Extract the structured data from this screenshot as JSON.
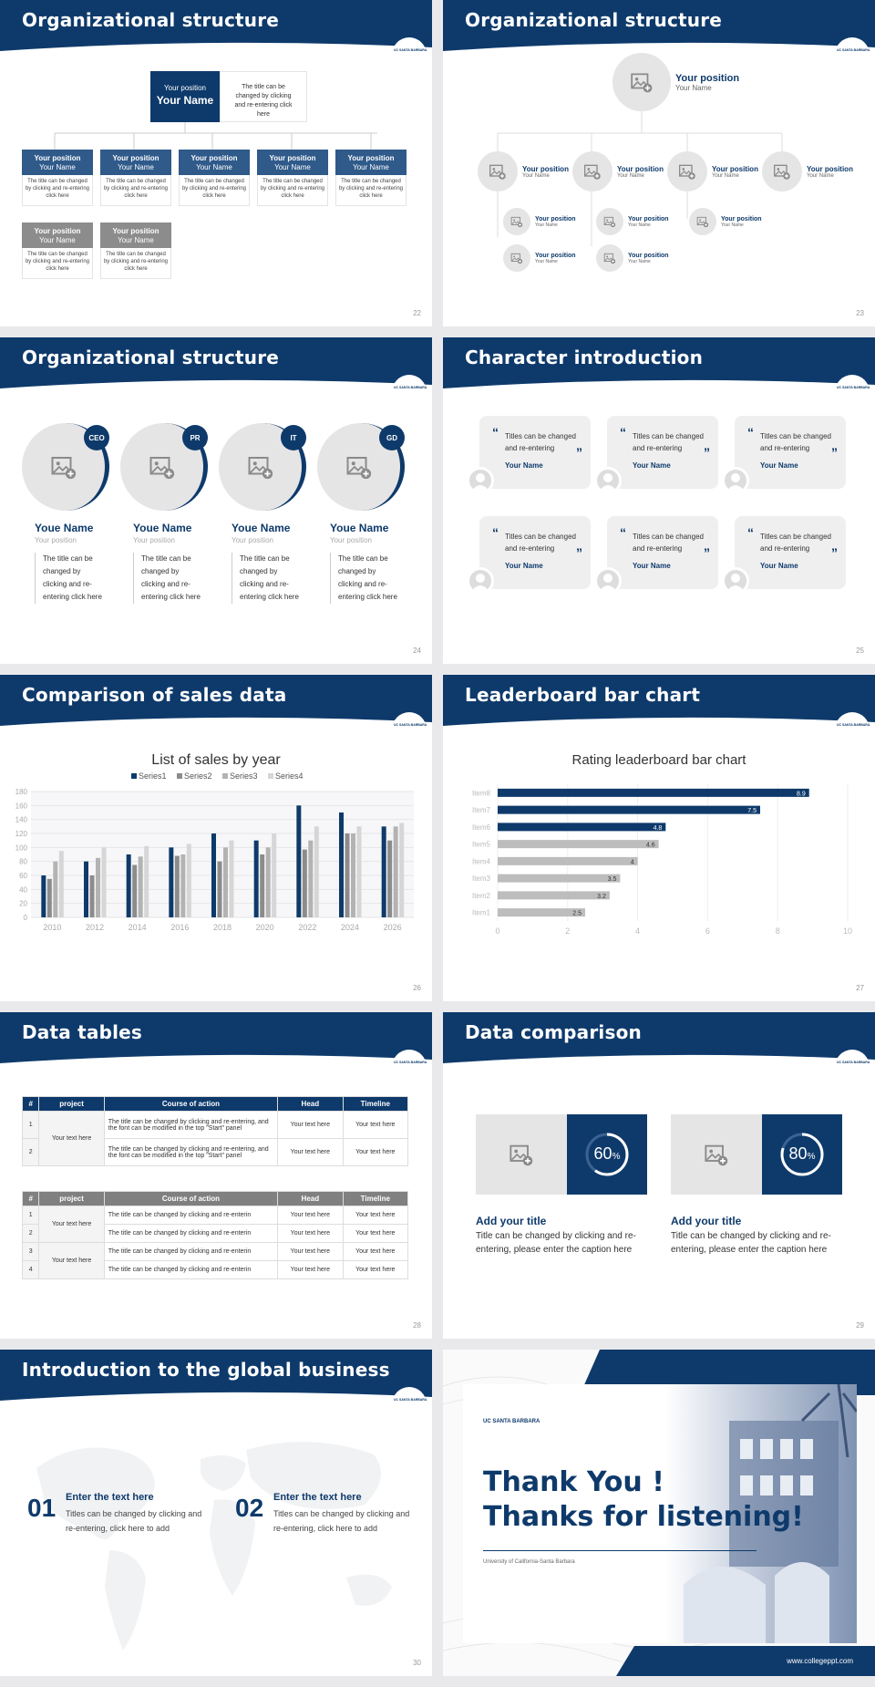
{
  "colors": {
    "navy": "#0e3a6b",
    "gray": "#b9b9b9",
    "lightgray": "#e6e5e5"
  },
  "logo_text": "UC SANTA BARBARA",
  "slides": {
    "s22": {
      "title": "Organizational structure",
      "page": "22",
      "top_pos": "Your position",
      "top_name": "Your Name",
      "top_desc": "The title can be changed by clicking and re-entering click here",
      "box_pos": "Your position",
      "box_name": "Your Name",
      "box_desc": "The title can be changed by clicking and re-entering click here"
    },
    "s23": {
      "title": "Organizational structure",
      "page": "23",
      "pos": "Your position",
      "name": "Your Name"
    },
    "s24": {
      "title": "Organizational structure",
      "page": "24",
      "badges": [
        "CEO",
        "PR",
        "IT",
        "GD"
      ],
      "name": "Youe Name",
      "pos": "Your position",
      "desc": "The title can be changed by clicking and re-entering click here"
    },
    "s25": {
      "title": "Character introduction",
      "page": "25",
      "quote": "Titles can be changed and re-entering",
      "name": "Your Name"
    },
    "s26": {
      "title": "Comparison of sales data",
      "page": "26"
    },
    "s27": {
      "title": "Leaderboard bar chart",
      "page": "27"
    },
    "s28": {
      "title": "Data tables",
      "page": "28",
      "headers": [
        "#",
        "project",
        "Course of action",
        "Head",
        "Timeline"
      ],
      "t1": {
        "project": "Your text here",
        "rows": [
          {
            "n": "1",
            "action": "The title can be changed by clicking and re-entering, and the font can be modified in the top \"Start\" panel",
            "head": "Your text here",
            "time": "Your text here"
          },
          {
            "n": "2",
            "action": "The title can be changed by clicking and re-entering, and the font can be modified in the top \"Start\" panel",
            "head": "Your text here",
            "time": "Your text here"
          }
        ]
      },
      "t2": {
        "rows": [
          {
            "n": "1",
            "project": "Your text here",
            "action": "The title can be changed by clicking and re-enterin",
            "head": "Your text here",
            "time": "Your text here"
          },
          {
            "n": "2",
            "project": "",
            "action": "The title can be changed by clicking and re-enterin",
            "head": "Your text here",
            "time": "Your text here"
          },
          {
            "n": "3",
            "project": "Your text here",
            "action": "The title can be changed by clicking and re-enterin",
            "head": "Your text here",
            "time": "Your text here"
          },
          {
            "n": "4",
            "project": "",
            "action": "The title can be changed by clicking and re-enterin",
            "head": "Your text here",
            "time": "Your text here"
          }
        ]
      }
    },
    "s29": {
      "title": "Data comparison",
      "page": "29",
      "items": [
        {
          "pct": "60",
          "h": "Add your title",
          "d": "Title can be changed by clicking and re-entering, please enter the caption here"
        },
        {
          "pct": "80",
          "h": "Add your title",
          "d": "Title can be changed by clicking and re-entering, please enter the caption here"
        }
      ]
    },
    "s30": {
      "title": "Introduction to the global business",
      "page": "30",
      "items": [
        {
          "n": "01",
          "h": "Enter the text here",
          "d": "Titles can be changed by clicking and re-entering, click here to add"
        },
        {
          "n": "02",
          "h": "Enter the text here",
          "d": "Titles can be changed by clicking and re-entering, click here to add"
        }
      ]
    },
    "s31": {
      "logo": "UC SANTA BARBARA",
      "l1": "Thank You !",
      "l2": "Thanks for listening!",
      "sub": "University of California-Santa Barbara",
      "url": "www.collegeppt.com"
    }
  },
  "chart_data": [
    {
      "type": "bar",
      "title": "List of sales by year",
      "categories": [
        "2010",
        "2012",
        "2014",
        "2016",
        "2018",
        "2020",
        "2022",
        "2024",
        "2026"
      ],
      "series": [
        {
          "name": "Series1",
          "color": "#0e3a6b",
          "values": [
            60,
            80,
            90,
            100,
            120,
            110,
            160,
            150,
            130
          ]
        },
        {
          "name": "Series2",
          "color": "#8c8c8c",
          "values": [
            55,
            60,
            75,
            88,
            80,
            90,
            97,
            120,
            110
          ]
        },
        {
          "name": "Series3",
          "color": "#b3b3b3",
          "values": [
            80,
            85,
            87,
            90,
            100,
            100,
            110,
            120,
            130
          ]
        },
        {
          "name": "Series4",
          "color": "#d6d6d6",
          "values": [
            95,
            100,
            102,
            105,
            110,
            120,
            130,
            130,
            135
          ]
        }
      ],
      "ylim": [
        0,
        180
      ],
      "yticks": [
        0,
        20,
        40,
        60,
        80,
        100,
        120,
        140,
        160,
        180
      ],
      "grid": true,
      "legend": "top"
    },
    {
      "type": "bar",
      "orientation": "horizontal",
      "title": "Rating leaderboard bar chart",
      "categories": [
        "Item8",
        "Item7",
        "Item6",
        "Item5",
        "Item4",
        "Item3",
        "Item2",
        "Item1"
      ],
      "values": [
        8.9,
        7.5,
        4.8,
        4.6,
        4,
        3.5,
        3.2,
        2.5
      ],
      "xlim": [
        0,
        10
      ],
      "xticks": [
        0,
        2,
        4,
        6,
        8,
        10
      ]
    }
  ]
}
